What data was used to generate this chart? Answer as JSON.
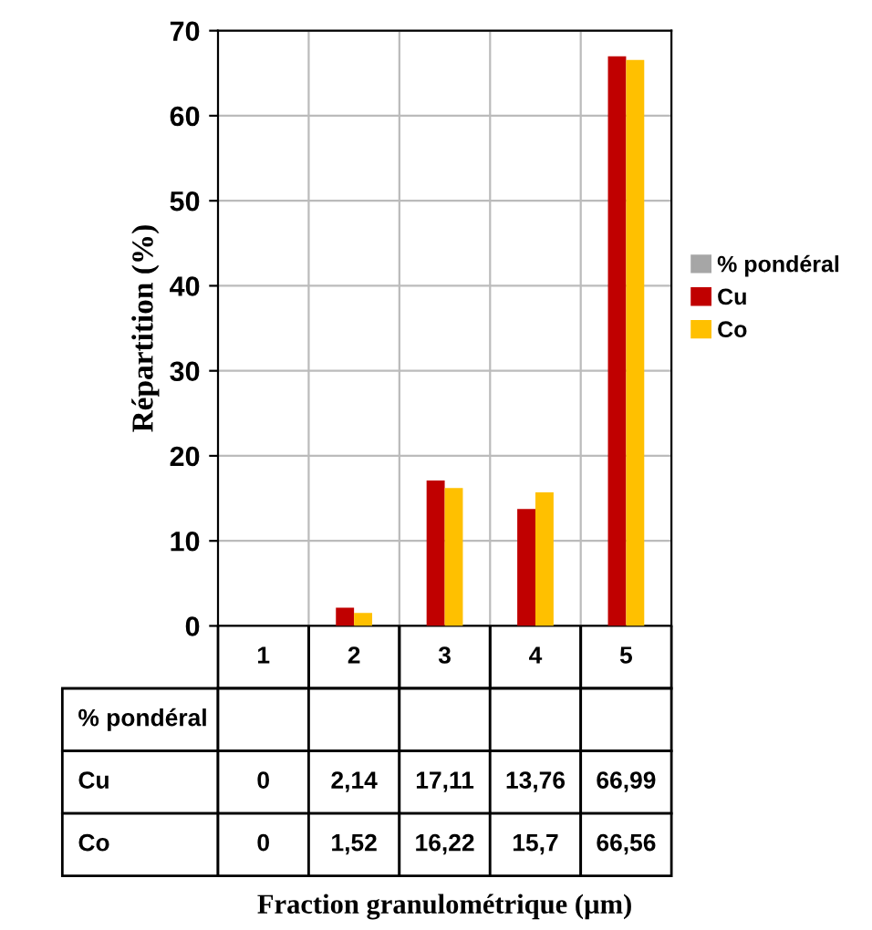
{
  "chart_data": {
    "type": "bar",
    "annotations": [
      "Fraction granulométrique (µm)"
    ],
    "ylabel": "Répartition (%)",
    "categories": [
      "1",
      "2",
      "3",
      "4",
      "5"
    ],
    "series": [
      {
        "name": "% pondéral",
        "color": "#a6a6a6",
        "values": [
          null,
          null,
          null,
          null,
          null
        ],
        "value_labels": [
          null,
          null,
          null,
          null,
          null
        ]
      },
      {
        "name": "Cu",
        "color": "#c00000",
        "values": [
          0,
          2.14,
          17.11,
          13.76,
          66.99
        ],
        "value_labels": [
          "0",
          "2,14",
          "17,11",
          "13,76",
          "66,99"
        ]
      },
      {
        "name": "Co",
        "color": "#ffc000",
        "values": [
          0,
          1.52,
          16.22,
          15.7,
          66.56
        ],
        "value_labels": [
          "0",
          "1,52",
          "16,22",
          "15,7",
          "66,56"
        ]
      }
    ],
    "ylim": [
      0,
      70
    ],
    "yticks": [
      0,
      10,
      20,
      30,
      40,
      50,
      60,
      70
    ],
    "grid": true,
    "legend": "right"
  }
}
